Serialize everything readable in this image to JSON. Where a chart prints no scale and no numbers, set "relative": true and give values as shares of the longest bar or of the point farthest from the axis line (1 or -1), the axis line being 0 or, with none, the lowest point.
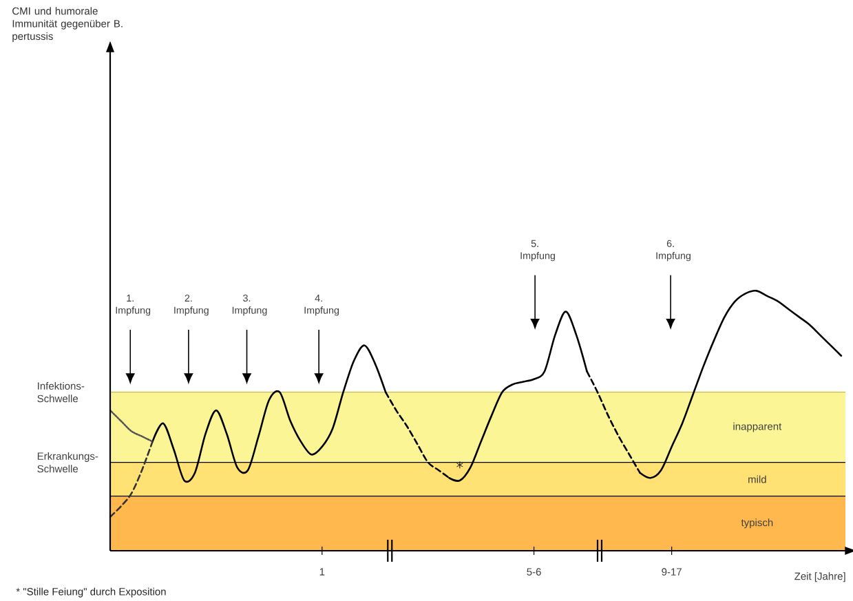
{
  "chart_data": {
    "type": "line",
    "relative": true,
    "xlabel": "Zeit [Jahre]",
    "categories": [
      null,
      null,
      null,
      null,
      null,
      null,
      null,
      null,
      null,
      null,
      null,
      null,
      null,
      null,
      null,
      null,
      null,
      null,
      null,
      null,
      "1",
      null,
      null,
      null,
      null,
      null,
      null,
      null,
      null,
      null,
      null,
      null,
      null,
      null,
      null,
      null,
      null,
      null,
      null,
      null,
      "5-6",
      null,
      null,
      null,
      null,
      null,
      null,
      null,
      null,
      null,
      null,
      null,
      null,
      "9-17",
      null,
      null,
      null,
      null,
      null,
      null,
      null,
      null,
      null,
      null,
      null,
      null,
      null,
      null,
      null,
      null
    ],
    "marker": "none",
    "series": [
      {
        "color": "#000000",
        "line_style": "solid",
        "values": [
          null,
          null,
          null,
          null,
          0.42,
          0.49,
          0.39,
          0.27,
          0.3,
          0.45,
          0.54,
          0.45,
          0.32,
          0.31,
          0.44,
          0.58,
          0.61,
          0.5,
          0.42,
          0.37,
          0.4,
          0.47,
          0.61,
          0.73,
          0.79,
          0.72,
          0.61,
          null,
          null,
          null,
          null,
          null,
          null,
          null,
          null,
          null,
          null,
          null,
          null,
          null,
          null,
          null,
          null,
          null,
          null,
          null,
          null,
          null,
          null,
          null,
          null,
          null,
          null,
          null,
          null,
          null,
          null,
          null,
          null,
          null,
          null,
          null,
          null,
          null,
          null,
          null,
          null,
          null,
          null,
          null
        ]
      },
      {
        "color": "#000000",
        "line_style": "dashed",
        "values": [
          null,
          null,
          null,
          null,
          null,
          null,
          null,
          null,
          null,
          null,
          null,
          null,
          null,
          null,
          null,
          null,
          null,
          null,
          null,
          null,
          null,
          null,
          null,
          null,
          null,
          null,
          0.61,
          0.54,
          0.48,
          0.41,
          0.34,
          0.31,
          0.28,
          null,
          null,
          null,
          null,
          null,
          null,
          null,
          null,
          null,
          null,
          null,
          null,
          null,
          null,
          null,
          null,
          null,
          null,
          null,
          null,
          null,
          null,
          null,
          null,
          null,
          null,
          null,
          null,
          null,
          null,
          null,
          null,
          null,
          null,
          null,
          null,
          null
        ]
      },
      {
        "color": "#000000",
        "line_style": "solid",
        "values": [
          null,
          null,
          null,
          null,
          null,
          null,
          null,
          null,
          null,
          null,
          null,
          null,
          null,
          null,
          null,
          null,
          null,
          null,
          null,
          null,
          null,
          null,
          null,
          null,
          null,
          null,
          null,
          null,
          null,
          null,
          null,
          null,
          0.28,
          0.27,
          0.32,
          0.42,
          0.52,
          0.61,
          0.64,
          0.65,
          0.66,
          0.69,
          0.83,
          0.92,
          0.83,
          0.69,
          null,
          null,
          null,
          null,
          null,
          null,
          null,
          null,
          null,
          null,
          null,
          null,
          null,
          null,
          null,
          null,
          null,
          null,
          null,
          null,
          null,
          null,
          null,
          null
        ]
      },
      {
        "color": "#000000",
        "line_style": "dashed",
        "values": [
          null,
          null,
          null,
          null,
          null,
          null,
          null,
          null,
          null,
          null,
          null,
          null,
          null,
          null,
          null,
          null,
          null,
          null,
          null,
          null,
          null,
          null,
          null,
          null,
          null,
          null,
          null,
          null,
          null,
          null,
          null,
          null,
          null,
          null,
          null,
          null,
          null,
          null,
          null,
          null,
          null,
          null,
          null,
          null,
          null,
          0.69,
          0.61,
          0.52,
          0.44,
          0.37,
          0.3,
          null,
          null,
          null,
          null,
          null,
          null,
          null,
          null,
          null,
          null,
          null,
          null,
          null,
          null,
          null,
          null,
          null,
          null,
          null
        ]
      },
      {
        "color": "#000000",
        "line_style": "solid",
        "values": [
          null,
          null,
          null,
          null,
          null,
          null,
          null,
          null,
          null,
          null,
          null,
          null,
          null,
          null,
          null,
          null,
          null,
          null,
          null,
          null,
          null,
          null,
          null,
          null,
          null,
          null,
          null,
          null,
          null,
          null,
          null,
          null,
          null,
          null,
          null,
          null,
          null,
          null,
          null,
          null,
          null,
          null,
          null,
          null,
          null,
          null,
          null,
          null,
          null,
          null,
          0.3,
          0.28,
          0.31,
          0.4,
          0.49,
          0.6,
          0.71,
          0.81,
          0.9,
          0.96,
          0.99,
          1.0,
          0.98,
          0.96,
          0.93,
          0.9,
          0.87,
          0.83,
          0.79,
          0.75
        ]
      },
      {
        "color": "#555555",
        "line_style": "dotted",
        "values": [
          0.54,
          0.5,
          0.46,
          0.44,
          0.42,
          null,
          null,
          null,
          null,
          null,
          null,
          null,
          null,
          null,
          null,
          null,
          null,
          null,
          null,
          null,
          null,
          null,
          null,
          null,
          null,
          null,
          null,
          null,
          null,
          null,
          null,
          null,
          null,
          null,
          null,
          null,
          null,
          null,
          null,
          null,
          null,
          null,
          null,
          null,
          null,
          null,
          null,
          null,
          null,
          null,
          null,
          null,
          null,
          null,
          null,
          null,
          null,
          null,
          null,
          null,
          null,
          null,
          null,
          null,
          null,
          null,
          null,
          null,
          null,
          null
        ]
      },
      {
        "color": "#333333",
        "line_style": "dashed",
        "values": [
          0.13,
          0.17,
          0.22,
          0.31,
          0.42,
          null,
          null,
          null,
          null,
          null,
          null,
          null,
          null,
          null,
          null,
          null,
          null,
          null,
          null,
          null,
          null,
          null,
          null,
          null,
          null,
          null,
          null,
          null,
          null,
          null,
          null,
          null,
          null,
          null,
          null,
          null,
          null,
          null,
          null,
          null,
          null,
          null,
          null,
          null,
          null,
          null,
          null,
          null,
          null,
          null,
          null,
          null,
          null,
          null,
          null,
          null,
          null,
          null,
          null,
          null,
          null,
          null,
          null,
          null,
          null,
          null,
          null,
          null,
          null,
          null
        ]
      },
      {
        "type": "scatter",
        "marker": "cross",
        "color": "#000000",
        "values": [
          null,
          null,
          null,
          null,
          null,
          null,
          null,
          null,
          null,
          null,
          null,
          null,
          null,
          null,
          null,
          null,
          null,
          null,
          null,
          null,
          null,
          null,
          null,
          null,
          null,
          null,
          null,
          null,
          null,
          null,
          null,
          null,
          null,
          0.33,
          null,
          null,
          null,
          null,
          null,
          null,
          null,
          null,
          null,
          null,
          null,
          null,
          null,
          null,
          null,
          null,
          null,
          null,
          null,
          null,
          null,
          null,
          null,
          null,
          null,
          null,
          null,
          null,
          null,
          null,
          null,
          null,
          null,
          null,
          null,
          null
        ]
      }
    ],
    "bands": [
      {
        "axis": "y",
        "from": 0,
        "to": 0.21,
        "label": "typisch",
        "color": "#ffb84d"
      },
      {
        "axis": "y",
        "from": 0.21,
        "to": 0.34,
        "label": "mild",
        "color": "#ffe273"
      },
      {
        "axis": "y",
        "from": 0.34,
        "to": 0.61,
        "label": "inapparent",
        "color": "#fbf595"
      }
    ],
    "ref_lines": [
      {
        "axis": "y",
        "value": 0.61,
        "label": "Infektions-Schwelle",
        "color": "#c9bf4a"
      },
      {
        "axis": "y",
        "value": 0.34,
        "label": "Erkrankungs-Schwelle",
        "color": "#000000"
      },
      {
        "axis": "y",
        "value": 0.21,
        "color": "#000000"
      }
    ],
    "annotations": [
      "CMI und humorale Immunität gegenüber B. pertussis",
      "1. Impfung",
      "2. Impfung",
      "3. Impfung",
      "4. Impfung",
      "5. Impfung",
      "6. Impfung",
      "* \"Stille Feiung\" durch Exposition"
    ]
  }
}
